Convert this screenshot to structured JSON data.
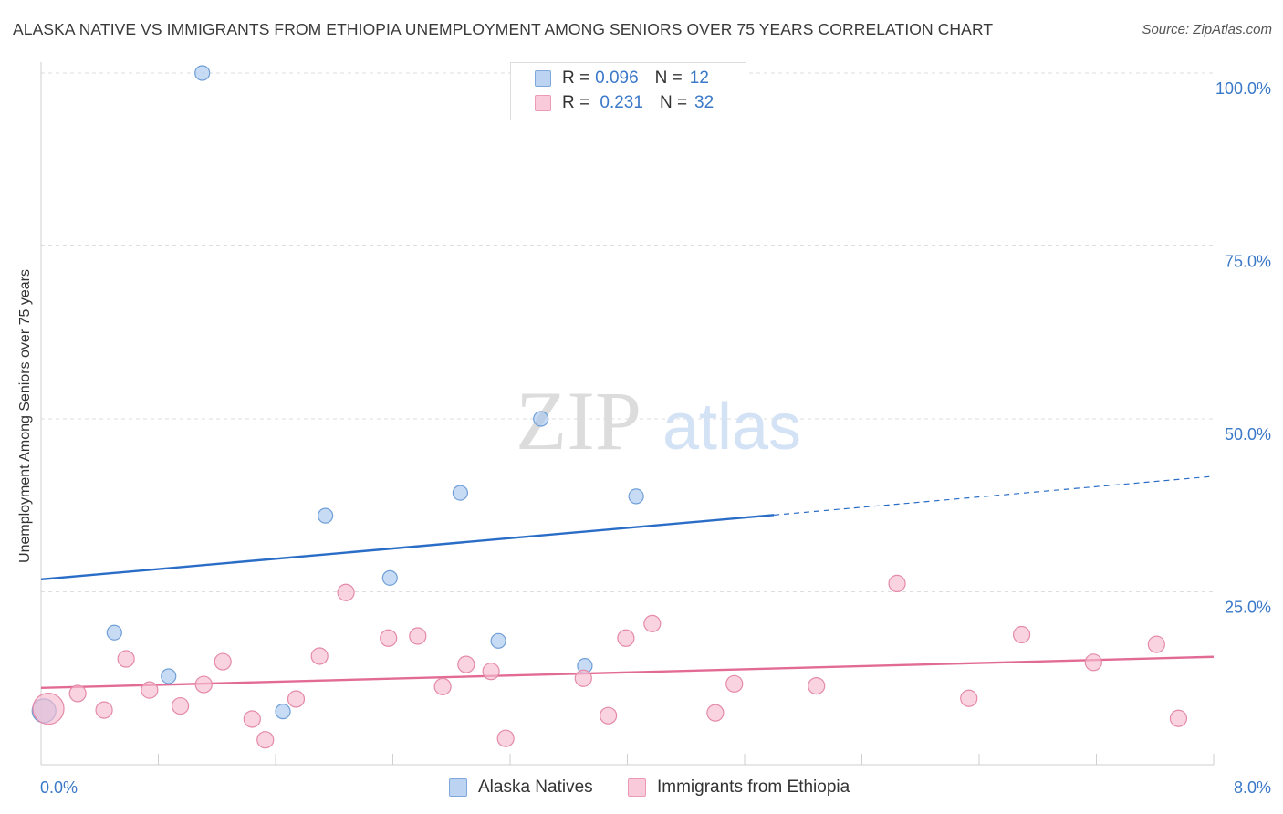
{
  "chart_data": {
    "type": "scatter",
    "title": "ALASKA NATIVE VS IMMIGRANTS FROM ETHIOPIA UNEMPLOYMENT AMONG SENIORS OVER 75 YEARS CORRELATION CHART",
    "source": "Source: ZipAtlas.com",
    "ylabel": "Unemployment Among Seniors over 75 years",
    "xlabel": "",
    "xlim": [
      0,
      8
    ],
    "ylim": [
      0,
      100
    ],
    "x_tick_labels": {
      "min": "0.0%",
      "max": "8.0%"
    },
    "y_ticks": [
      {
        "value": 100,
        "label": "100.0%"
      },
      {
        "value": 75,
        "label": "75.0%"
      },
      {
        "value": 50,
        "label": "50.0%"
      },
      {
        "value": 25,
        "label": "25.0%"
      }
    ],
    "watermark": {
      "zip": "ZIP",
      "atlas": "atlas"
    },
    "legend": [
      {
        "r_label": "R =",
        "r_value": "0.096",
        "n_label": "N =",
        "n_value": "12"
      },
      {
        "r_label": "R =",
        "r_value": " 0.231",
        "n_label": "N =",
        "n_value": "32"
      }
    ],
    "series": [
      {
        "name": "Alaska Natives",
        "color": "#a9c7ee",
        "stroke": "#6f9fd8",
        "line_color": "#2a6dc7",
        "trend": {
          "x0": 0,
          "y0": 26.8,
          "x1": 5.0,
          "y1": 36.1,
          "dash_x1": 8.0,
          "dash_y1": 41.7
        },
        "points": [
          {
            "x": 0.02,
            "y": 7.8,
            "r": 13
          },
          {
            "x": 1.1,
            "y": 100.0,
            "r": 8
          },
          {
            "x": 0.5,
            "y": 19.1,
            "r": 8
          },
          {
            "x": 0.87,
            "y": 12.8,
            "r": 8
          },
          {
            "x": 1.65,
            "y": 7.7,
            "r": 8
          },
          {
            "x": 1.94,
            "y": 36.0,
            "r": 8
          },
          {
            "x": 2.38,
            "y": 27.0,
            "r": 8
          },
          {
            "x": 2.86,
            "y": 39.3,
            "r": 8
          },
          {
            "x": 3.12,
            "y": 17.9,
            "r": 8
          },
          {
            "x": 3.41,
            "y": 50.0,
            "r": 8
          },
          {
            "x": 3.71,
            "y": 14.3,
            "r": 8
          },
          {
            "x": 4.06,
            "y": 38.8,
            "r": 8
          }
        ]
      },
      {
        "name": "Immigrants from Ethiopia",
        "color": "#f7bccf",
        "stroke": "#e48aa8",
        "line_color": "#e26b95",
        "trend": {
          "x0": 0,
          "y0": 11.1,
          "x1": 8.0,
          "y1": 15.6
        },
        "points": [
          {
            "x": 0.05,
            "y": 8.1,
            "r": 17
          },
          {
            "x": 0.25,
            "y": 10.3,
            "r": 9
          },
          {
            "x": 0.43,
            "y": 7.9,
            "r": 9
          },
          {
            "x": 0.58,
            "y": 15.3,
            "r": 9
          },
          {
            "x": 0.74,
            "y": 10.8,
            "r": 9
          },
          {
            "x": 0.95,
            "y": 8.5,
            "r": 9
          },
          {
            "x": 1.11,
            "y": 11.6,
            "r": 9
          },
          {
            "x": 1.24,
            "y": 14.9,
            "r": 9
          },
          {
            "x": 1.44,
            "y": 6.6,
            "r": 9
          },
          {
            "x": 1.53,
            "y": 3.6,
            "r": 9
          },
          {
            "x": 1.74,
            "y": 9.5,
            "r": 9
          },
          {
            "x": 1.9,
            "y": 15.7,
            "r": 9
          },
          {
            "x": 2.08,
            "y": 24.9,
            "r": 9
          },
          {
            "x": 2.37,
            "y": 18.3,
            "r": 9
          },
          {
            "x": 2.57,
            "y": 18.6,
            "r": 9
          },
          {
            "x": 2.74,
            "y": 11.3,
            "r": 9
          },
          {
            "x": 2.9,
            "y": 14.5,
            "r": 9
          },
          {
            "x": 3.07,
            "y": 13.5,
            "r": 9
          },
          {
            "x": 3.17,
            "y": 3.8,
            "r": 9
          },
          {
            "x": 3.7,
            "y": 12.5,
            "r": 9
          },
          {
            "x": 3.87,
            "y": 7.1,
            "r": 9
          },
          {
            "x": 3.99,
            "y": 18.3,
            "r": 9
          },
          {
            "x": 4.17,
            "y": 20.4,
            "r": 9
          },
          {
            "x": 4.6,
            "y": 7.5,
            "r": 9
          },
          {
            "x": 4.73,
            "y": 11.7,
            "r": 9
          },
          {
            "x": 5.29,
            "y": 11.4,
            "r": 9
          },
          {
            "x": 5.84,
            "y": 26.2,
            "r": 9
          },
          {
            "x": 6.33,
            "y": 9.6,
            "r": 9
          },
          {
            "x": 6.69,
            "y": 18.8,
            "r": 9
          },
          {
            "x": 7.18,
            "y": 14.8,
            "r": 9
          },
          {
            "x": 7.61,
            "y": 17.4,
            "r": 9
          },
          {
            "x": 7.76,
            "y": 6.7,
            "r": 9
          }
        ]
      }
    ]
  }
}
